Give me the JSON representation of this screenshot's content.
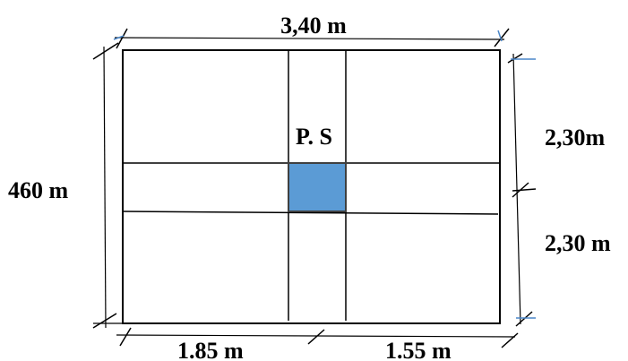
{
  "diagram": {
    "center_label": "P. S",
    "dimensions": {
      "top": "3,40 m",
      "left": "460 m",
      "right_upper": "2,30m",
      "right_lower": "2,30 m",
      "bottom_left": "1.85 m",
      "bottom_right": "1.55 m"
    },
    "colors": {
      "stroke": "#000000",
      "center_fill": "#5b9bd5",
      "tick_accent": "#4a86c8"
    }
  }
}
